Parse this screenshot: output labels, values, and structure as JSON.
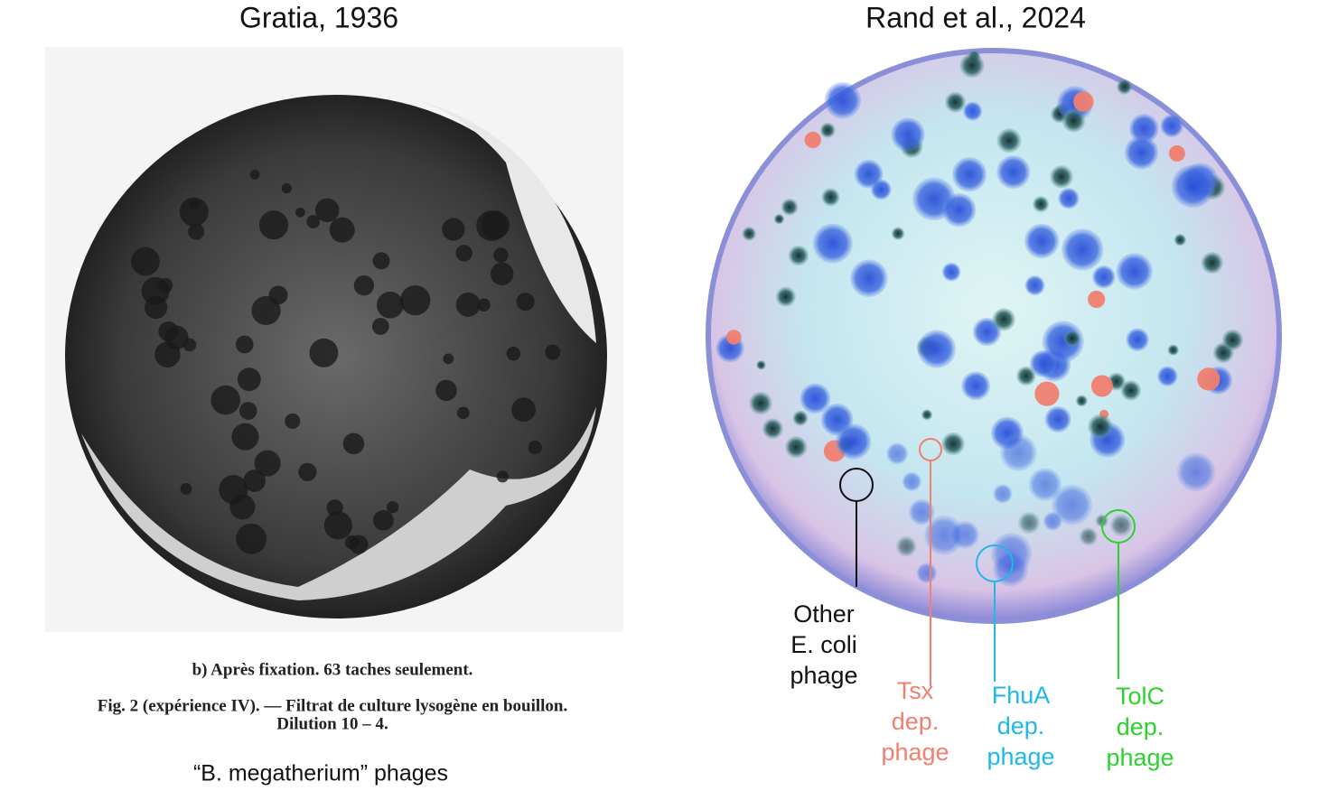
{
  "left_panel": {
    "title": "Gratia, 1936",
    "caption_lines": [
      "b) Après fixation. 63 taches seulement.",
      "Fig. 2 (expérience IV). — Filtrat de culture lysogène en bouillon.",
      "Dilution 10 – 4."
    ],
    "subtitle": "“B. megatherium” phages"
  },
  "right_panel": {
    "title": "Rand et al., 2024",
    "annotations": [
      {
        "lines": [
          "Other",
          "E. coli",
          "phage"
        ],
        "color": "#111111"
      },
      {
        "lines": [
          "Tsx",
          "dep.",
          "phage"
        ],
        "color": "#f08070"
      },
      {
        "lines": [
          "FhuA",
          "dep.",
          "phage"
        ],
        "color": "#1fb8e8"
      },
      {
        "lines": [
          "TolC",
          "dep.",
          "phage"
        ],
        "color": "#2ed22e"
      }
    ]
  }
}
